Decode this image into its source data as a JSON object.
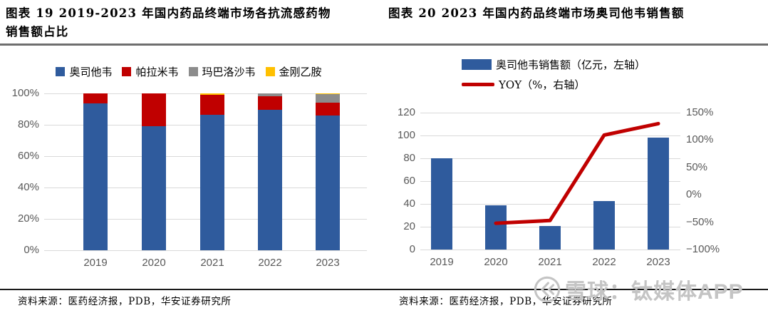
{
  "figures": [
    {
      "title": "图表 19 2019-2023 年国内药品终端市场各抗流感药物销售额占比",
      "source": "资料来源：医药经济报，PDB，华安证券研究所"
    },
    {
      "title": "图表 20 2023 年国内药品终端市场奥司他韦销售额",
      "source": "资料来源：医药经济报，PDB，华安证券研究所"
    }
  ],
  "watermark": {
    "logo": "xueqiu-logo",
    "text": "雪球：钛媒体APP",
    "color": "#c4c4c4"
  },
  "chart_data": [
    {
      "type": "bar",
      "subtype": "stacked-100-percent",
      "title": "2019-2023 年国内药品终端市场各抗流感药物销售额占比",
      "categories": [
        "2019",
        "2020",
        "2021",
        "2022",
        "2023"
      ],
      "series": [
        {
          "name": "奥司他韦",
          "color": "#2F5B9D",
          "values": [
            93.5,
            79,
            86.5,
            89.5,
            86
          ]
        },
        {
          "name": "帕拉米韦",
          "color": "#C00000",
          "values": [
            6.5,
            21,
            12.8,
            8.5,
            8
          ]
        },
        {
          "name": "玛巴洛沙韦",
          "color": "#8C8C8C",
          "values": [
            0,
            0,
            0,
            2,
            5.5
          ]
        },
        {
          "name": "金刚乙胺",
          "color": "#FFC000",
          "values": [
            0,
            0,
            0.7,
            0,
            0.5
          ]
        }
      ],
      "ylim": [
        0,
        100
      ],
      "ytick_values": [
        0,
        20,
        40,
        60,
        80,
        100
      ],
      "ytick_labels": [
        "0%",
        "20%",
        "40%",
        "60%",
        "80%",
        "100%"
      ],
      "grid": true,
      "legend_position": "top"
    },
    {
      "type": "bar+line",
      "title": "2023 年国内药品终端市场奥司他韦销售额",
      "categories": [
        "2019",
        "2020",
        "2021",
        "2022",
        "2023"
      ],
      "series": [
        {
          "name": "奥司他韦销售额（亿元，左轴）",
          "type": "bar",
          "axis": "left",
          "color": "#2F5B9D",
          "values": [
            80,
            38.6,
            20.4,
            42.6,
            98
          ]
        },
        {
          "name": "YOY（%，右轴）",
          "type": "line",
          "axis": "right",
          "color": "#C00000",
          "values": [
            null,
            -52,
            -47,
            109,
            130
          ]
        }
      ],
      "left_ylim": [
        0,
        120
      ],
      "left_ytick_values": [
        0,
        20,
        40,
        60,
        80,
        100,
        120
      ],
      "right_ylim": [
        -100,
        150
      ],
      "right_ytick_values": [
        150,
        100,
        50,
        0,
        -50,
        -100
      ],
      "right_ytick_labels": [
        "150%",
        "100%",
        "50%",
        "0%",
        "−50%",
        "−100%"
      ],
      "grid": true,
      "legend_position": "top"
    }
  ]
}
